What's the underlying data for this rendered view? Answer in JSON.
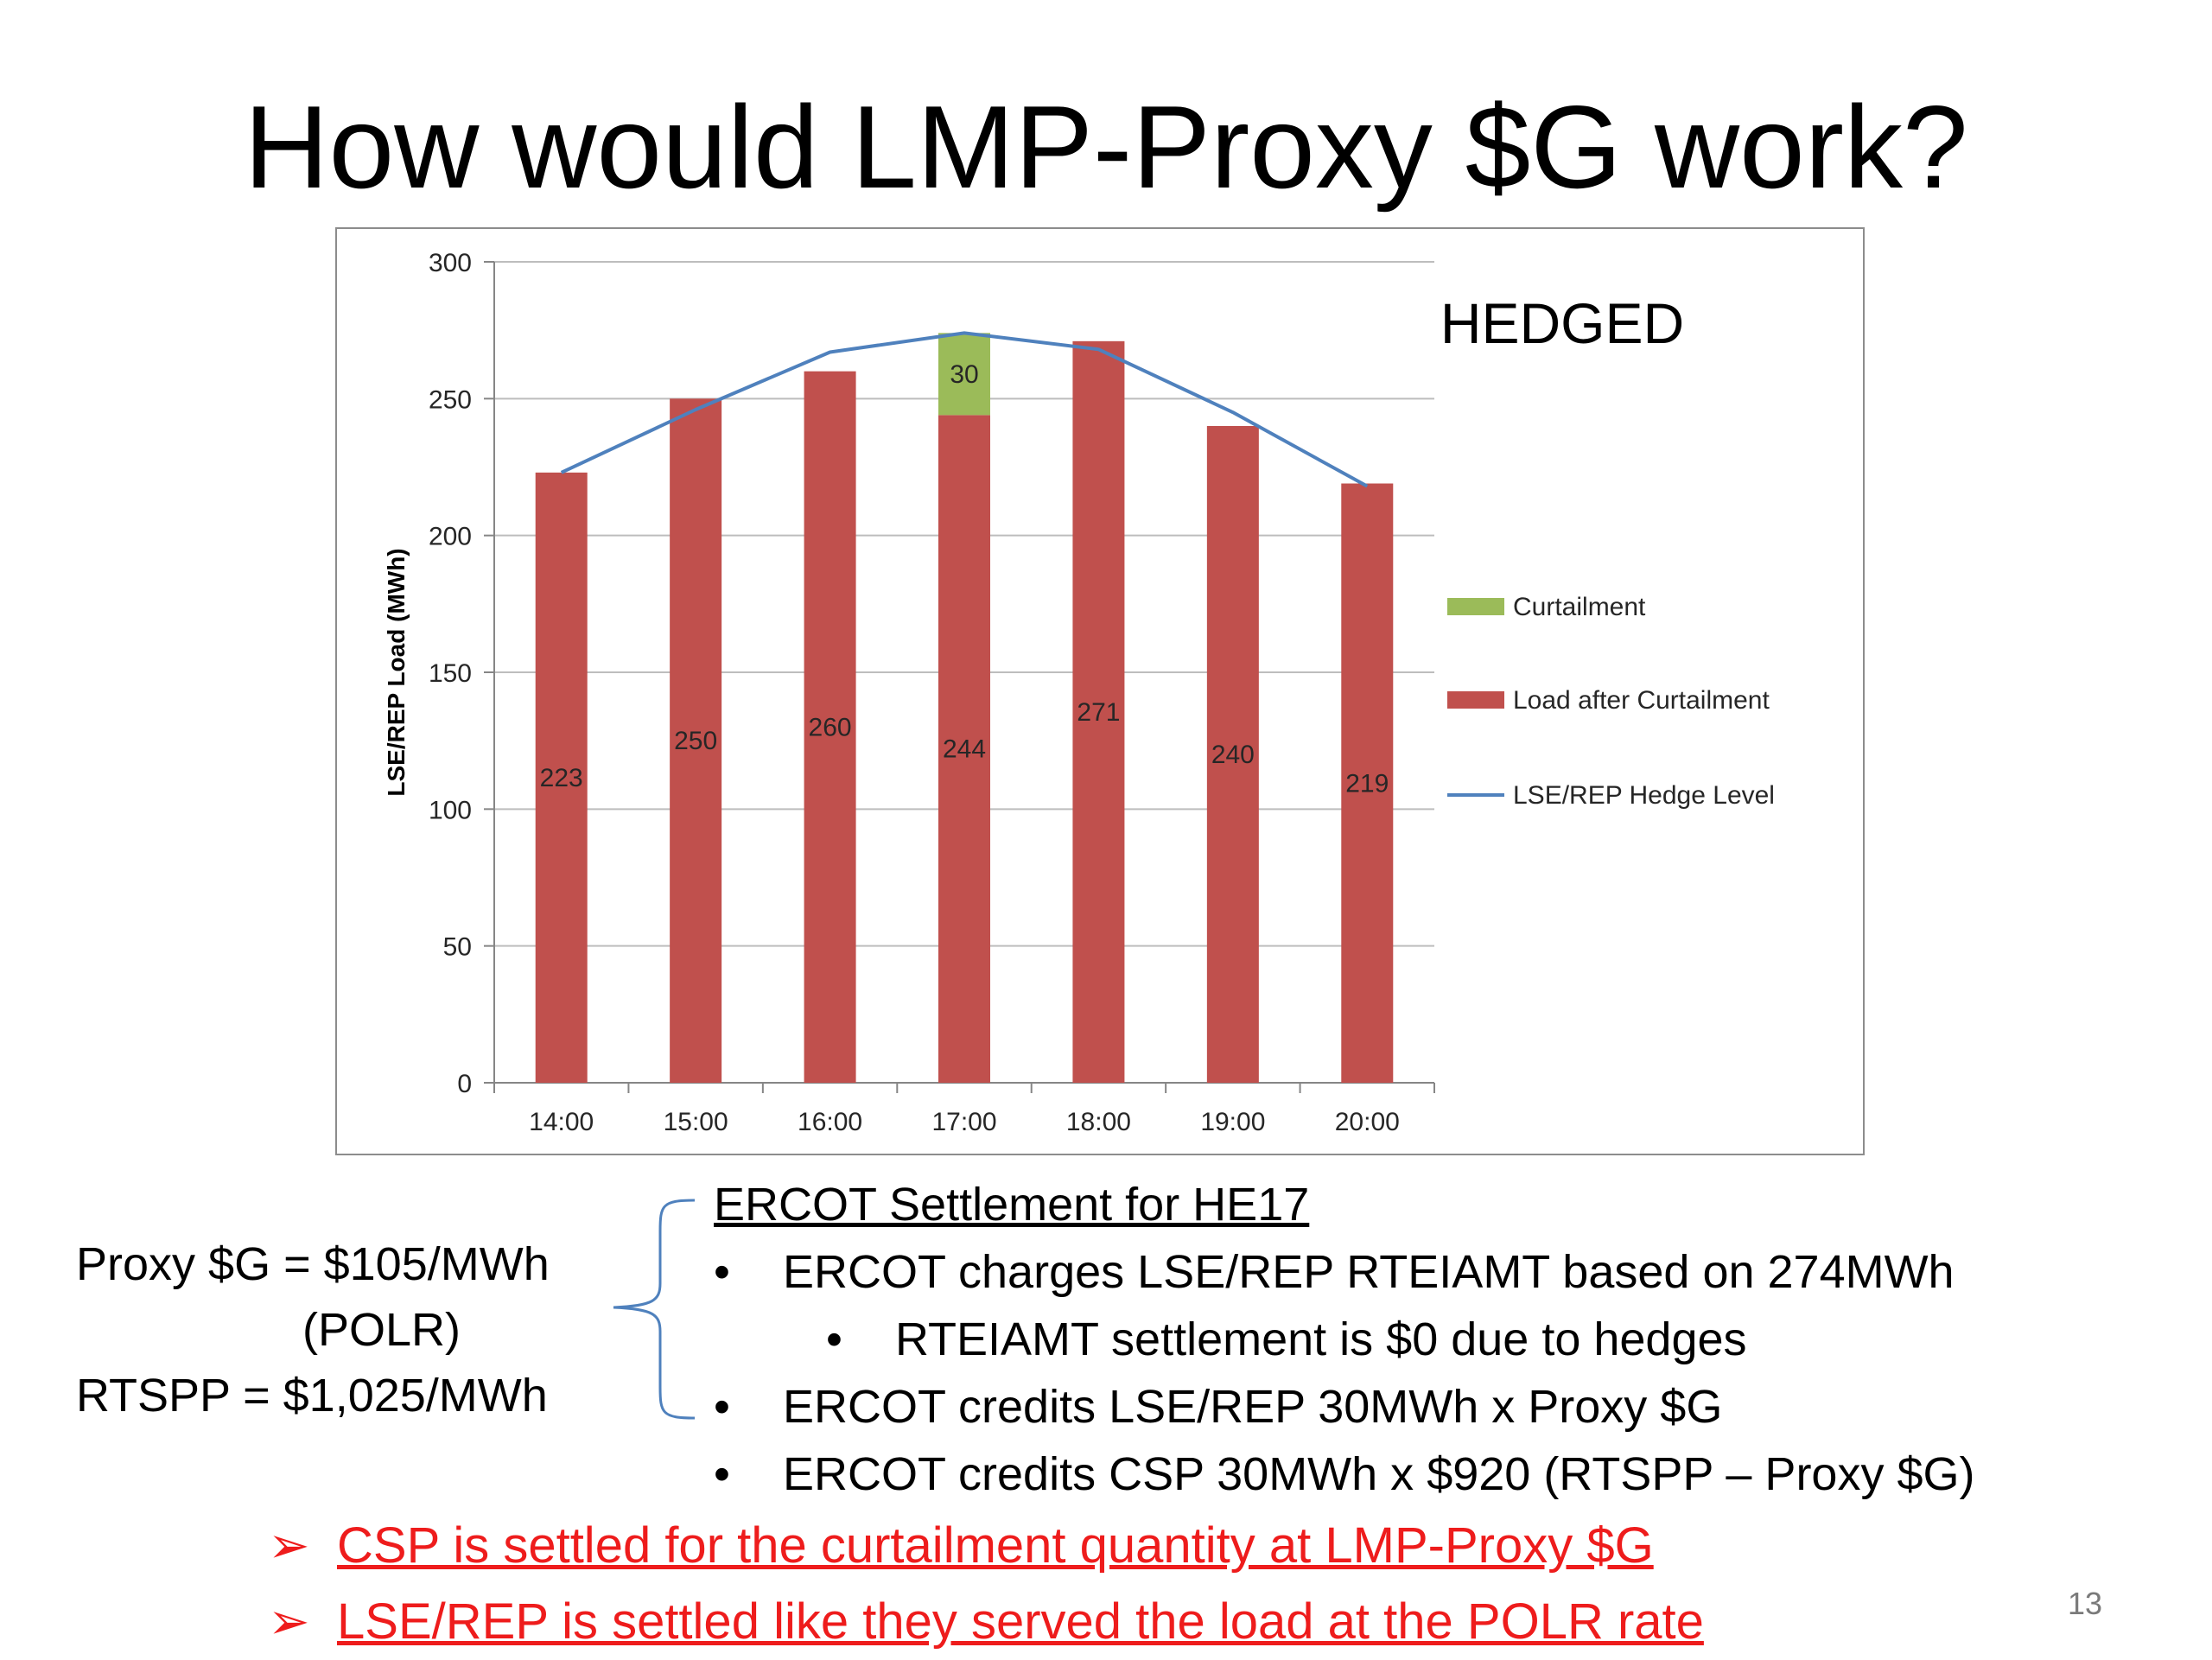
{
  "slide": {
    "title": "How would LMP-Proxy $G work?",
    "page_number": "13"
  },
  "chart_data": {
    "type": "bar",
    "stacked": true,
    "annotation": "HEDGED",
    "ylabel": "LSE/REP Load (MWh)",
    "xlabel": "",
    "ylim": [
      0,
      300
    ],
    "yticks": [
      0,
      50,
      100,
      150,
      200,
      250,
      300
    ],
    "grid": true,
    "legend_position": "right",
    "categories": [
      "14:00",
      "15:00",
      "16:00",
      "17:00",
      "18:00",
      "19:00",
      "20:00"
    ],
    "series": [
      {
        "name": "Curtailment",
        "kind": "bar",
        "color": "#9bbb59",
        "values": [
          0,
          0,
          0,
          30,
          0,
          0,
          0
        ],
        "labels": [
          "",
          "",
          "",
          "30",
          "",
          "",
          ""
        ]
      },
      {
        "name": "Load after Curtailment",
        "kind": "bar",
        "color": "#c0504d",
        "values": [
          223,
          250,
          260,
          244,
          271,
          240,
          219
        ],
        "labels": [
          "223",
          "250",
          "260",
          "244",
          "271",
          "240",
          "219"
        ]
      },
      {
        "name": "LSE/REP Hedge Level",
        "kind": "line",
        "color": "#4f81bd",
        "values": [
          223,
          246,
          267,
          274,
          268,
          245,
          218
        ]
      }
    ]
  },
  "notes": {
    "proxy_line": "Proxy $G = $105/MWh",
    "polr_line": "(POLR)",
    "rtspp_line": "RTSPP = $1,025/MWh"
  },
  "settlement": {
    "heading": "ERCOT Settlement for HE17",
    "bullet_glyph": "•",
    "items": [
      {
        "text": "ERCOT charges LSE/REP RTEIAMT based on 274MWh"
      },
      {
        "text": "RTEIAMT settlement is $0 due to hedges"
      },
      {
        "text": "ERCOT credits LSE/REP 30MWh x Proxy $G"
      },
      {
        "text": "ERCOT credits CSP 30MWh x $920 (RTSPP – Proxy $G)"
      }
    ]
  },
  "conclusions": {
    "arrow_glyph": "➢",
    "items": [
      "CSP is settled for the curtailment quantity at LMP-Proxy $G",
      "LSE/REP is settled like they served the load at the POLR rate"
    ],
    "color": "#ee1c1c"
  }
}
